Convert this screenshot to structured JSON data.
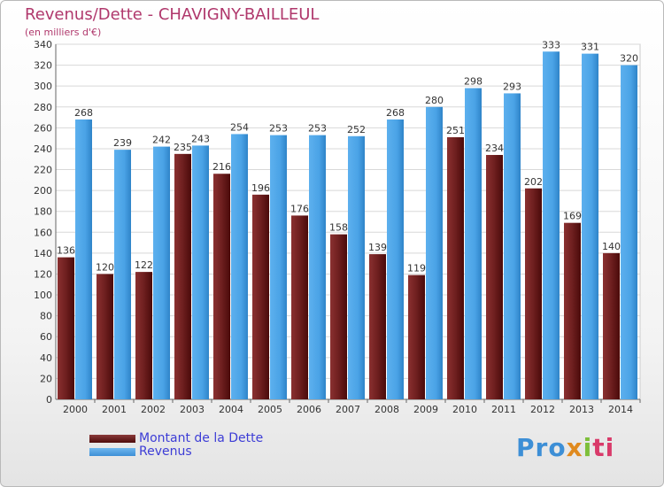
{
  "chart_data": {
    "type": "bar",
    "title": "Revenus/Dette - CHAVIGNY-BAILLEUL",
    "subtitle": "(en milliers d'€)",
    "categories": [
      "2000",
      "2001",
      "2002",
      "2003",
      "2004",
      "2005",
      "2006",
      "2007",
      "2008",
      "2009",
      "2010",
      "2011",
      "2012",
      "2013",
      "2014"
    ],
    "series": [
      {
        "name": "Montant de la Dette",
        "color": "#6e1f1f",
        "values": [
          136,
          120,
          122,
          235,
          216,
          196,
          176,
          158,
          139,
          119,
          251,
          234,
          202,
          169,
          140
        ]
      },
      {
        "name": "Revenus",
        "color": "#4aa3e6",
        "values": [
          268,
          239,
          242,
          243,
          254,
          253,
          253,
          252,
          268,
          280,
          298,
          293,
          333,
          331,
          320
        ]
      }
    ],
    "ylim": [
      0,
      340
    ],
    "yticks": [
      0,
      20,
      40,
      60,
      80,
      100,
      120,
      140,
      160,
      180,
      200,
      220,
      240,
      260,
      280,
      300,
      320,
      340
    ],
    "grid": true,
    "legend_position": "bottom-left"
  },
  "branding": {
    "logo_text": [
      "Pro",
      "x",
      "i",
      "ti"
    ]
  }
}
